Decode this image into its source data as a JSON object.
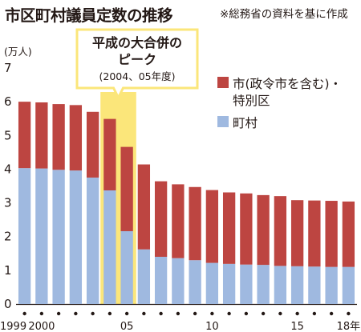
{
  "title": "市区町村議員定数の推移",
  "source": "※総務省の資料を基に作成",
  "chart_data": {
    "type": "bar",
    "stacked": true,
    "y_unit_label": "(万人)",
    "ylim": [
      0,
      7
    ],
    "y_ticks": [
      0,
      1,
      2,
      3,
      4,
      5,
      6,
      7
    ],
    "categories": [
      "1999",
      "2000",
      "2001",
      "2002",
      "2003",
      "2004",
      "2005",
      "2006",
      "2007",
      "2008",
      "2009",
      "2010",
      "2011",
      "2012",
      "2013",
      "2014",
      "2015",
      "2016",
      "2017",
      "2018"
    ],
    "x_tick_labels": [
      {
        "index": 0,
        "text": "1999"
      },
      {
        "index": 1,
        "text": "2000"
      },
      {
        "index": 6,
        "text": "05"
      },
      {
        "index": 11,
        "text": "10"
      },
      {
        "index": 16,
        "text": "15"
      },
      {
        "index": 19,
        "text": "18年"
      }
    ],
    "x_dot_indices": [
      0,
      1,
      2,
      3,
      4,
      5,
      6,
      7,
      8,
      9,
      10,
      11,
      12,
      13,
      14,
      15,
      16,
      17,
      18,
      19
    ],
    "series": [
      {
        "name": "町村",
        "color": "#9fb9e0",
        "values": [
          4.03,
          4.02,
          3.98,
          3.96,
          3.75,
          3.37,
          2.16,
          1.62,
          1.4,
          1.36,
          1.3,
          1.22,
          1.19,
          1.17,
          1.16,
          1.13,
          1.12,
          1.11,
          1.1,
          1.1
        ]
      },
      {
        "name": "市(政令市を含む)・特別区",
        "color": "#bd4541",
        "values": [
          1.97,
          1.96,
          1.95,
          1.94,
          1.95,
          2.12,
          2.5,
          2.52,
          2.24,
          2.19,
          2.17,
          2.16,
          2.12,
          2.11,
          2.07,
          2.07,
          1.96,
          1.96,
          1.96,
          1.94
        ]
      }
    ],
    "legend_position": "top-right",
    "annotation": {
      "title_line1": "平成の大合併の",
      "title_line2": "ピーク",
      "subtitle": "(2004、05年度)",
      "highlight_color": "#fbe67a"
    }
  }
}
